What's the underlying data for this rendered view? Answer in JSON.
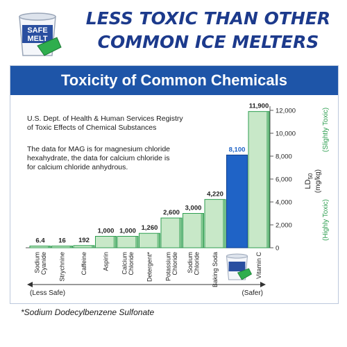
{
  "headline": {
    "line1": "LESS TOXIC THAN OTHER",
    "line2": "COMMON ICE MELTERS"
  },
  "product": {
    "brand_top": "SAFE",
    "brand_bottom": "MELT"
  },
  "panel": {
    "title": "Toxicity of Common Chemicals",
    "source_line1": "U.S. Dept. of Health & Human Services Registry",
    "source_line2": "of Toxic Effects of Chemical Substances",
    "note_line1": "The data for MAG is for magnesium chloride",
    "note_line2": "hexahydrate, the data for calcium chloride is",
    "note_line3": "for calcium chloride anhydrous."
  },
  "footnote": "*Sodium Dodecylbenzene Sulfonate",
  "chart_data": {
    "type": "bar",
    "title": "Toxicity of Common Chemicals",
    "categories": [
      [
        "Sodium",
        "Cyanide"
      ],
      [
        "Strychnine"
      ],
      [
        "Caffeine"
      ],
      [
        "Aspirin"
      ],
      [
        "Calcium",
        "Chloride"
      ],
      [
        "Detergent*"
      ],
      [
        "Potassium",
        "Chloride"
      ],
      [
        "Sodium",
        "Chloride"
      ],
      [
        "Baking Soda"
      ],
      [
        ""
      ],
      [
        "Vitamin C"
      ]
    ],
    "values": [
      6.4,
      16,
      192,
      1000,
      1000,
      1260,
      2600,
      3000,
      4220,
      8100,
      11900
    ],
    "value_labels": [
      "6.4",
      "16",
      "192",
      "1,000",
      "1,000",
      "1,260",
      "2,600",
      "3,000",
      "4,220",
      "8,100",
      "11,900"
    ],
    "highlight_index": 9,
    "ylim": [
      0,
      12000
    ],
    "yticks": [
      0,
      2000,
      4000,
      6000,
      8000,
      10000,
      12000
    ],
    "ytick_labels": [
      "0",
      "2,000",
      "4,000",
      "6,000",
      "8,000",
      "10,000",
      "12,000"
    ],
    "ylabel_main": "LD",
    "ylabel_sub": "50",
    "ylabel_unit": "(mg/kg)",
    "label_slightly_toxic": "(Slightly Toxic)",
    "label_highly_toxic": "(Highly Toxic)",
    "arrow_left": "(Less Safe)",
    "arrow_right": "(Safer)",
    "colors": {
      "bar": "#c8e8c8",
      "bar_edge": "#2e9e50",
      "highlight": "#1f63c6",
      "highlight_edge": "#0d3f8e",
      "axis_text": "#222222",
      "green_text": "#2e9e50",
      "value_highlight": "#1f63c6"
    }
  }
}
